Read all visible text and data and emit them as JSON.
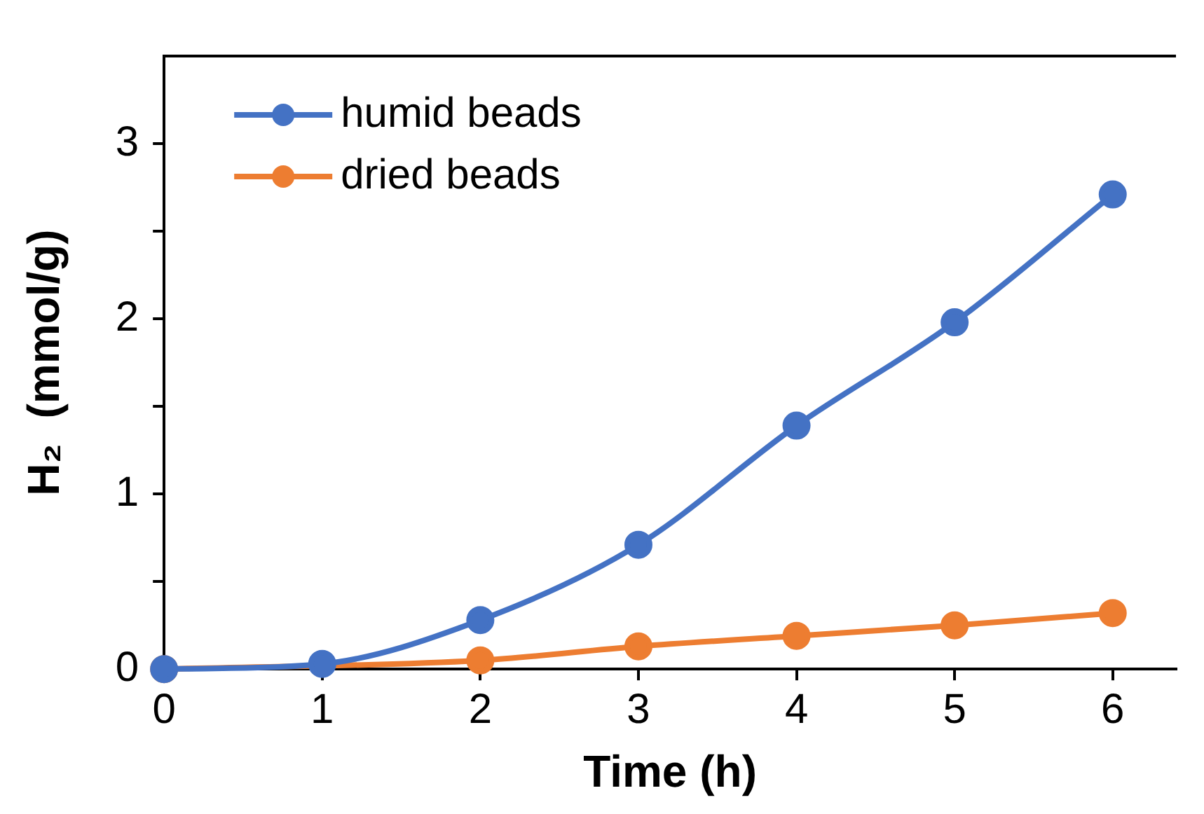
{
  "chart_data": {
    "type": "line",
    "xlabel": "Time (h)",
    "ylabel": "H₂  (mmol/g)",
    "x": [
      0,
      1,
      2,
      3,
      4,
      5,
      6
    ],
    "series": [
      {
        "name": "humid beads",
        "color": "#4472c4",
        "values": [
          0,
          0.03,
          0.28,
          0.71,
          1.39,
          1.98,
          2.71
        ]
      },
      {
        "name": "dried beads",
        "color": "#ed7d31",
        "values": [
          0,
          null,
          0.05,
          0.13,
          0.19,
          0.25,
          0.32
        ]
      }
    ],
    "xlim": [
      0,
      6.4
    ],
    "xticks": [
      0,
      1,
      2,
      3,
      4,
      5,
      6
    ],
    "ylim": [
      0,
      3.5
    ],
    "yticks": [
      0,
      {
        "value": 0.5,
        "label": null
      },
      1,
      {
        "value": 1.5,
        "label": null
      },
      2,
      {
        "value": 2.5,
        "label": null
      },
      3
    ],
    "grid": false,
    "legend": "top left",
    "marker": "circle",
    "line_style": "solid"
  }
}
